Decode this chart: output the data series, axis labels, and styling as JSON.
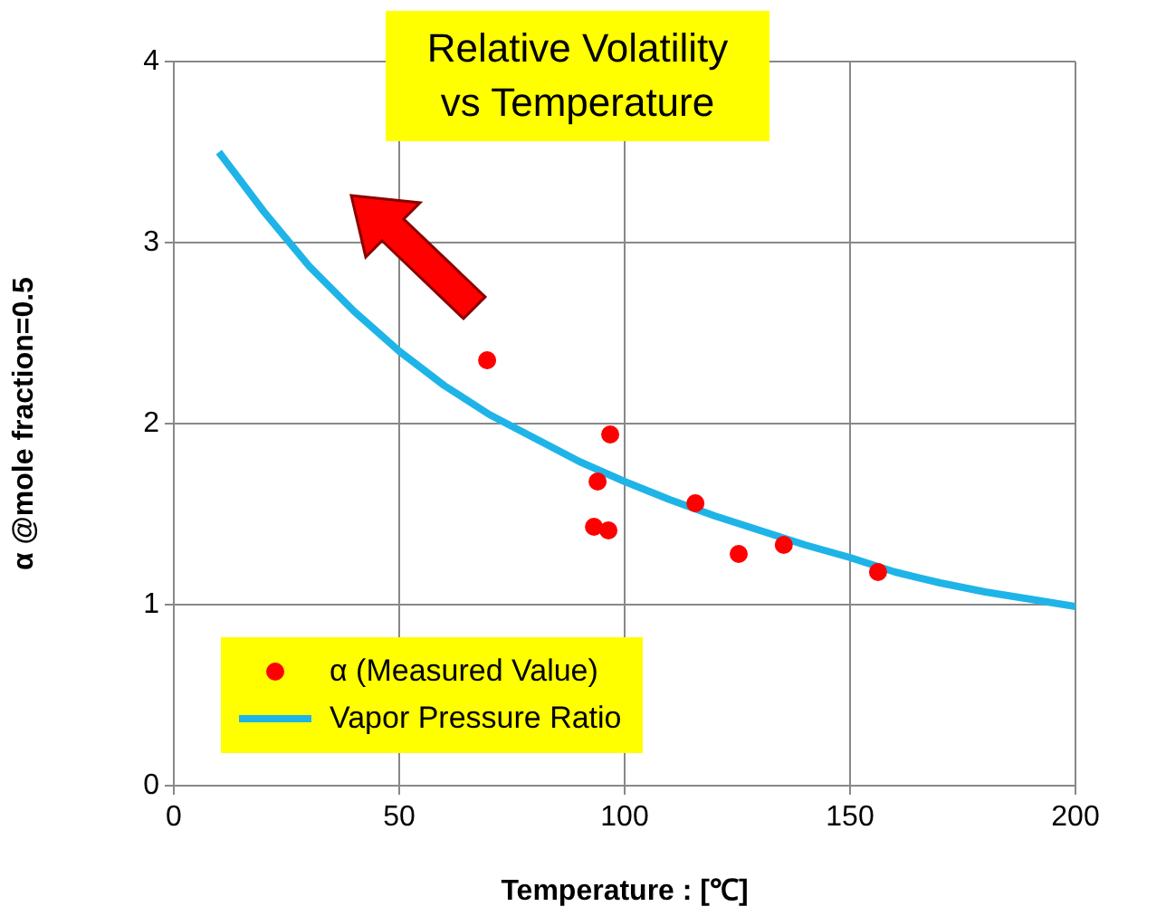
{
  "chart_data": {
    "type": "scatter",
    "title": "Relative Volatility\nvs Temperature",
    "xlabel": "Temperature : [℃]",
    "ylabel": "α @mole fraction=0.5",
    "xlim": [
      0,
      200
    ],
    "ylim": [
      0,
      4
    ],
    "xticks": [
      0,
      50,
      100,
      150,
      200
    ],
    "yticks": [
      0,
      1,
      2,
      3,
      4
    ],
    "grid": true,
    "legend": "bottom left",
    "series": [
      {
        "name": "α (Measured Value)",
        "type": "scatter",
        "color": "#ff0000",
        "marker": "circle",
        "x": [
          69.5,
          94,
          96.8,
          93.2,
          96.4,
          115.7,
          125.3,
          135.3,
          156.2
        ],
        "values": [
          2.35,
          1.68,
          1.94,
          1.43,
          1.41,
          1.56,
          1.28,
          1.33,
          1.18
        ]
      },
      {
        "name": "Vapor Pressure Ratio",
        "type": "line",
        "color": "#1fb4e8",
        "marker": "none",
        "line_style": "solid",
        "x": [
          10,
          20,
          30,
          40,
          50,
          60,
          70,
          80,
          90,
          100,
          110,
          120,
          130,
          140,
          150,
          160,
          170,
          180,
          190,
          200
        ],
        "values": [
          3.5,
          3.17,
          2.87,
          2.62,
          2.4,
          2.21,
          2.05,
          1.92,
          1.79,
          1.68,
          1.58,
          1.49,
          1.41,
          1.33,
          1.26,
          1.18,
          1.12,
          1.07,
          1.03,
          0.99
        ]
      }
    ]
  }
}
